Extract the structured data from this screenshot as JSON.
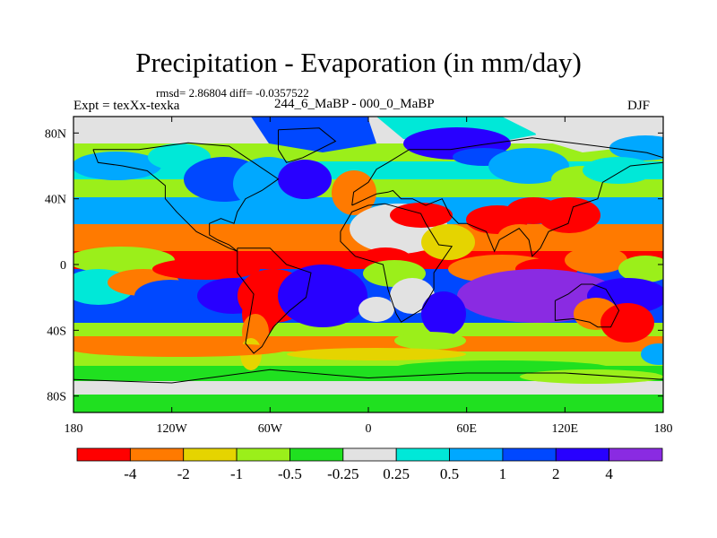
{
  "title": "Precipitation - Evaporation (in mm/day)",
  "stats": "rmsd= 2.86804 diff= -0.0357522",
  "expt": "Expt = texXx-texka",
  "period": "244_6_MaBP - 000_0_MaBP",
  "season": "DJF",
  "chart_data": {
    "type": "heatmap",
    "x_ticks": [
      "180",
      "120W",
      "60W",
      "0",
      "60E",
      "120E",
      "180"
    ],
    "y_ticks": [
      "80N",
      "40N",
      "0",
      "40S",
      "80S"
    ],
    "xlim": [
      -180,
      180
    ],
    "ylim": [
      -90,
      90
    ],
    "colorbar": {
      "labels": [
        "-4",
        "-2",
        "-1",
        "-0.5",
        "-0.25",
        "0.25",
        "0.5",
        "1",
        "2",
        "4"
      ],
      "colors": [
        "#ff0000",
        "#ff7a00",
        "#e5d400",
        "#9bef1a",
        "#20e020",
        "#e2e2e2",
        "#00e8d8",
        "#00a8ff",
        "#0048ff",
        "#2800ff",
        "#8a2be2"
      ]
    }
  }
}
